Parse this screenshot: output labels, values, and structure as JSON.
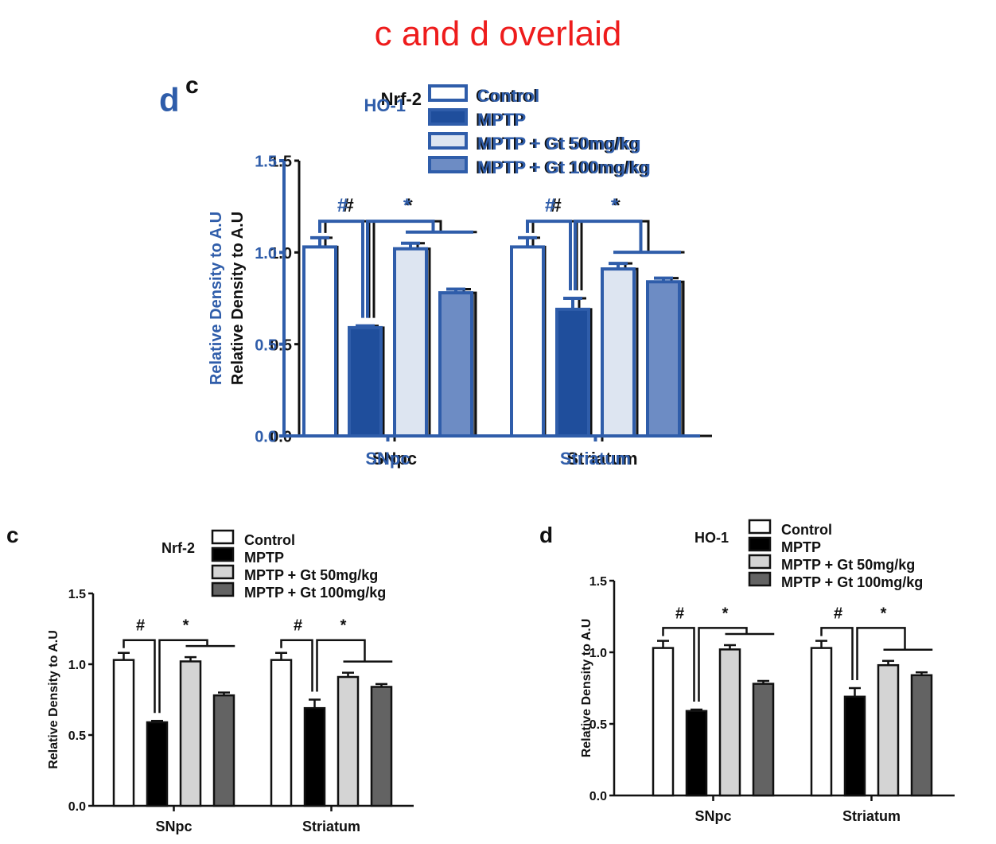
{
  "page_title": "c and d overlaid",
  "colors": {
    "title_red": "#ee1c1c",
    "overlay_blue": "#2f5daa",
    "control": "#ffffff",
    "mptp": "#000000",
    "gt50": "#d4d4d4",
    "gt100": "#636363",
    "blue_control": "#ffffff",
    "blue_mptp": "#1f4e9c",
    "blue_gt50": "#dde5f1",
    "blue_gt100": "#6d8cc4"
  },
  "chart_data": [
    {
      "id": "c",
      "panel_letter": "c",
      "type": "bar",
      "title": "Nrf-2",
      "ylabel": "Relative Density  to A.U",
      "xlabel": "",
      "ylim": [
        0,
        1.5
      ],
      "yticks": [
        "0.0",
        "0.5",
        "1.0",
        "1.5"
      ],
      "categories": [
        "SNpc",
        "Striatum"
      ],
      "legend_position": "top-right",
      "series": [
        {
          "name": "Control",
          "values": [
            1.03,
            1.03
          ],
          "errors": [
            0.05,
            0.05
          ]
        },
        {
          "name": "MPTP",
          "values": [
            0.59,
            0.69
          ],
          "errors": [
            0.01,
            0.06
          ]
        },
        {
          "name": "MPTP + Gt 50mg/kg",
          "values": [
            1.02,
            0.91
          ],
          "errors": [
            0.03,
            0.03
          ]
        },
        {
          "name": "MPTP + Gt 100mg/kg",
          "values": [
            0.78,
            0.84
          ],
          "errors": [
            0.02,
            0.02
          ]
        }
      ],
      "annotations": [
        {
          "category": "SNpc",
          "symbol": "#",
          "comparison": "Control vs MPTP"
        },
        {
          "category": "SNpc",
          "symbol": "*",
          "comparison": "MPTP vs Gt groups"
        },
        {
          "category": "Striatum",
          "symbol": "#",
          "comparison": "Control vs MPTP"
        },
        {
          "category": "Striatum",
          "symbol": "*",
          "comparison": "MPTP vs Gt groups"
        }
      ]
    },
    {
      "id": "d",
      "panel_letter": "d",
      "type": "bar",
      "title": "HO-1",
      "ylabel": "Relative Density  to A.U",
      "xlabel": "",
      "ylim": [
        0,
        1.5
      ],
      "yticks": [
        "0.0",
        "0.5",
        "1.0",
        "1.5"
      ],
      "categories": [
        "SNpc",
        "Striatum"
      ],
      "legend_position": "top-right",
      "series": [
        {
          "name": "Control",
          "values": [
            1.03,
            1.03
          ],
          "errors": [
            0.05,
            0.05
          ]
        },
        {
          "name": "MPTP",
          "values": [
            0.59,
            0.69
          ],
          "errors": [
            0.01,
            0.06
          ]
        },
        {
          "name": "MPTP + Gt 50mg/kg",
          "values": [
            1.02,
            0.91
          ],
          "errors": [
            0.03,
            0.03
          ]
        },
        {
          "name": "MPTP + Gt 100mg/kg",
          "values": [
            0.78,
            0.84
          ],
          "errors": [
            0.02,
            0.02
          ]
        }
      ],
      "annotations": [
        {
          "category": "SNpc",
          "symbol": "#",
          "comparison": "Control vs MPTP"
        },
        {
          "category": "SNpc",
          "symbol": "*",
          "comparison": "MPTP vs Gt groups"
        },
        {
          "category": "Striatum",
          "symbol": "#",
          "comparison": "Control vs MPTP"
        },
        {
          "category": "Striatum",
          "symbol": "*",
          "comparison": "MPTP vs Gt groups"
        }
      ]
    }
  ],
  "overlay": {
    "description": "Panel d (blue) drawn on top of panel c (black)",
    "letters": [
      "d",
      "c"
    ],
    "titles": [
      "HO-1",
      "Nrf-2"
    ]
  }
}
